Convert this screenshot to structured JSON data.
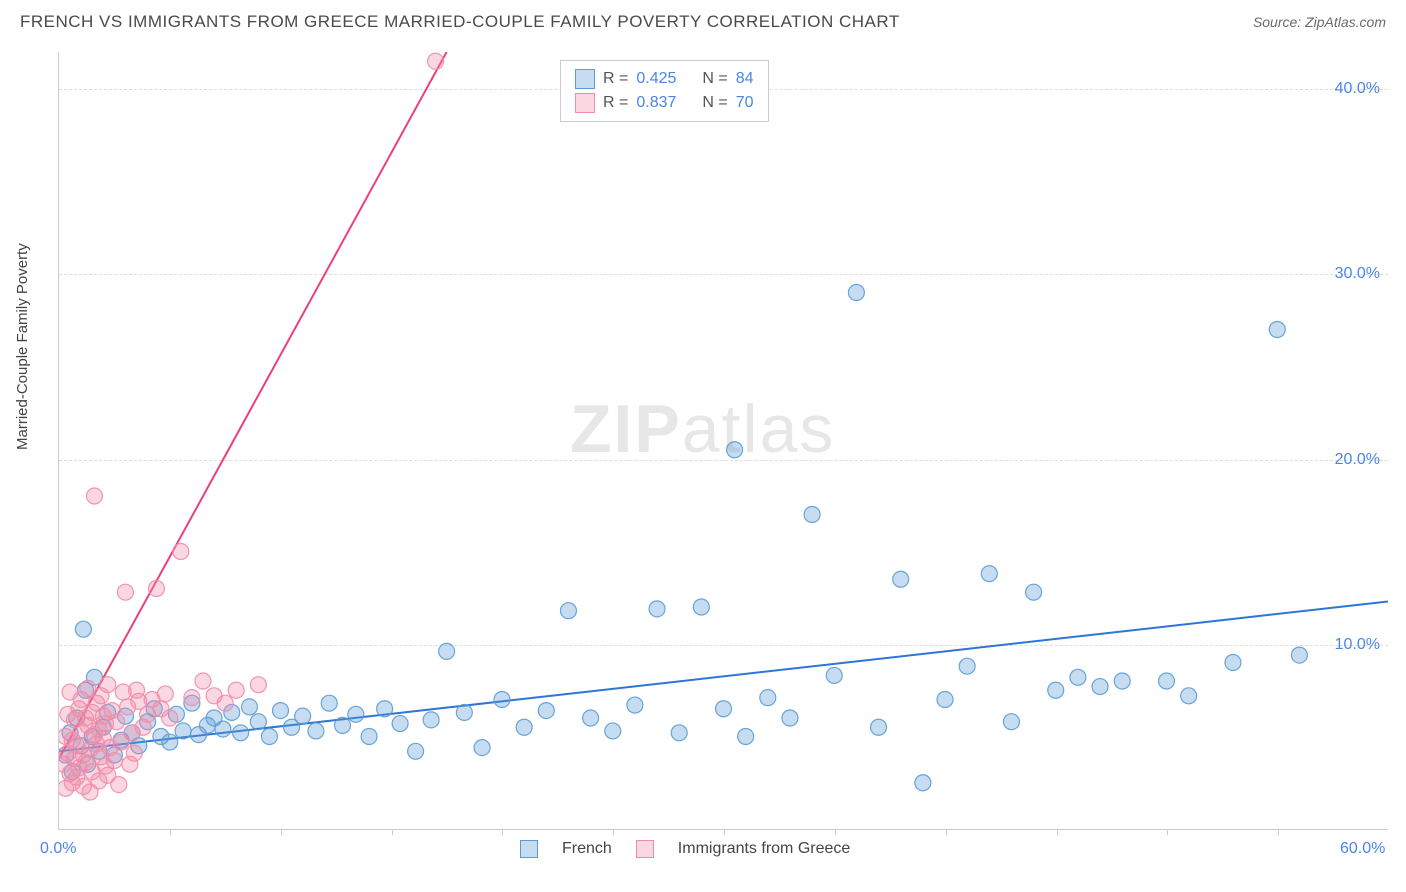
{
  "header": {
    "title": "FRENCH VS IMMIGRANTS FROM GREECE MARRIED-COUPLE FAMILY POVERTY CORRELATION CHART",
    "source": "Source: ZipAtlas.com"
  },
  "ylabel": "Married-Couple Family Poverty",
  "watermark_a": "ZIP",
  "watermark_b": "atlas",
  "chart": {
    "type": "scatter-with-regression",
    "xlim": [
      0,
      60
    ],
    "ylim": [
      0,
      42
    ],
    "x_origin_label": "0.0%",
    "x_max_label": "60.0%",
    "y_ticks": [
      {
        "v": 10,
        "label": "10.0%"
      },
      {
        "v": 20,
        "label": "20.0%"
      },
      {
        "v": 30,
        "label": "30.0%"
      },
      {
        "v": 40,
        "label": "40.0%"
      }
    ],
    "x_minor_ticks": [
      5,
      10,
      15,
      20,
      25,
      30,
      35,
      40,
      45,
      50,
      55
    ],
    "grid_color": "#dddddd",
    "background_color": "#ffffff",
    "axis_color": "#cccccc",
    "marker_radius": 8,
    "marker_fill_opacity": 0.35,
    "marker_stroke_opacity": 0.9,
    "line_width": 2,
    "series": [
      {
        "name": "French",
        "color": "#5b9bd5",
        "line_color": "#2e75d6",
        "R": "0.425",
        "N": "84",
        "regression": {
          "x1": 0,
          "y1": 4.2,
          "x2": 60,
          "y2": 12.3
        },
        "points": [
          [
            0.3,
            4.0
          ],
          [
            0.5,
            5.2
          ],
          [
            0.6,
            3.1
          ],
          [
            0.8,
            6.0
          ],
          [
            1.0,
            4.5
          ],
          [
            1.1,
            10.8
          ],
          [
            1.2,
            7.5
          ],
          [
            1.3,
            3.5
          ],
          [
            1.5,
            5.0
          ],
          [
            1.6,
            8.2
          ],
          [
            1.8,
            4.2
          ],
          [
            2.0,
            5.5
          ],
          [
            2.2,
            6.3
          ],
          [
            2.5,
            4.0
          ],
          [
            2.8,
            4.8
          ],
          [
            3.0,
            6.1
          ],
          [
            3.3,
            5.2
          ],
          [
            3.6,
            4.5
          ],
          [
            4.0,
            5.8
          ],
          [
            4.3,
            6.5
          ],
          [
            4.6,
            5.0
          ],
          [
            5.0,
            4.7
          ],
          [
            5.3,
            6.2
          ],
          [
            5.6,
            5.3
          ],
          [
            6.0,
            6.8
          ],
          [
            6.3,
            5.1
          ],
          [
            6.7,
            5.6
          ],
          [
            7.0,
            6.0
          ],
          [
            7.4,
            5.4
          ],
          [
            7.8,
            6.3
          ],
          [
            8.2,
            5.2
          ],
          [
            8.6,
            6.6
          ],
          [
            9.0,
            5.8
          ],
          [
            9.5,
            5.0
          ],
          [
            10.0,
            6.4
          ],
          [
            10.5,
            5.5
          ],
          [
            11.0,
            6.1
          ],
          [
            11.6,
            5.3
          ],
          [
            12.2,
            6.8
          ],
          [
            12.8,
            5.6
          ],
          [
            13.4,
            6.2
          ],
          [
            14.0,
            5.0
          ],
          [
            14.7,
            6.5
          ],
          [
            15.4,
            5.7
          ],
          [
            16.1,
            4.2
          ],
          [
            16.8,
            5.9
          ],
          [
            17.5,
            9.6
          ],
          [
            18.3,
            6.3
          ],
          [
            19.1,
            4.4
          ],
          [
            20.0,
            7.0
          ],
          [
            21.0,
            5.5
          ],
          [
            22.0,
            6.4
          ],
          [
            23.0,
            11.8
          ],
          [
            24.0,
            6.0
          ],
          [
            25.0,
            5.3
          ],
          [
            26.0,
            6.7
          ],
          [
            27.0,
            11.9
          ],
          [
            28.0,
            5.2
          ],
          [
            29.0,
            12.0
          ],
          [
            30.0,
            6.5
          ],
          [
            30.5,
            20.5
          ],
          [
            31.0,
            5.0
          ],
          [
            32.0,
            7.1
          ],
          [
            33.0,
            6.0
          ],
          [
            34.0,
            17.0
          ],
          [
            35.0,
            8.3
          ],
          [
            36.0,
            29.0
          ],
          [
            37.0,
            5.5
          ],
          [
            38.0,
            13.5
          ],
          [
            39.0,
            2.5
          ],
          [
            40.0,
            7.0
          ],
          [
            41.0,
            8.8
          ],
          [
            42.0,
            13.8
          ],
          [
            43.0,
            5.8
          ],
          [
            44.0,
            12.8
          ],
          [
            45.0,
            7.5
          ],
          [
            46.0,
            8.2
          ],
          [
            47.0,
            7.7
          ],
          [
            48.0,
            8.0
          ],
          [
            50.0,
            8.0
          ],
          [
            51.0,
            7.2
          ],
          [
            53.0,
            9.0
          ],
          [
            55.0,
            27.0
          ],
          [
            56.0,
            9.4
          ]
        ]
      },
      {
        "name": "Immigrants from Greece",
        "color": "#f08ca8",
        "line_color": "#ec407a",
        "R": "0.837",
        "N": "70",
        "regression": {
          "x1": 0,
          "y1": 3.8,
          "x2": 17.5,
          "y2": 42
        },
        "points": [
          [
            0.2,
            3.5
          ],
          [
            0.3,
            2.2
          ],
          [
            0.3,
            5.0
          ],
          [
            0.4,
            4.1
          ],
          [
            0.4,
            6.2
          ],
          [
            0.5,
            3.0
          ],
          [
            0.5,
            7.4
          ],
          [
            0.6,
            2.5
          ],
          [
            0.6,
            4.8
          ],
          [
            0.7,
            3.8
          ],
          [
            0.7,
            5.9
          ],
          [
            0.8,
            2.8
          ],
          [
            0.8,
            4.5
          ],
          [
            0.9,
            6.5
          ],
          [
            0.9,
            3.3
          ],
          [
            1.0,
            5.3
          ],
          [
            1.0,
            7.0
          ],
          [
            1.1,
            2.3
          ],
          [
            1.1,
            4.0
          ],
          [
            1.2,
            6.0
          ],
          [
            1.2,
            3.6
          ],
          [
            1.3,
            5.6
          ],
          [
            1.3,
            7.6
          ],
          [
            1.4,
            2.0
          ],
          [
            1.4,
            4.3
          ],
          [
            1.5,
            6.3
          ],
          [
            1.5,
            3.1
          ],
          [
            1.6,
            5.1
          ],
          [
            1.6,
            18.0
          ],
          [
            1.7,
            4.6
          ],
          [
            1.7,
            6.8
          ],
          [
            1.8,
            2.6
          ],
          [
            1.8,
            5.4
          ],
          [
            1.9,
            3.9
          ],
          [
            1.9,
            7.2
          ],
          [
            2.0,
            4.9
          ],
          [
            2.0,
            6.1
          ],
          [
            2.1,
            3.4
          ],
          [
            2.1,
            5.7
          ],
          [
            2.2,
            2.9
          ],
          [
            2.2,
            7.8
          ],
          [
            2.3,
            4.4
          ],
          [
            2.4,
            6.4
          ],
          [
            2.5,
            3.7
          ],
          [
            2.6,
            5.8
          ],
          [
            2.7,
            2.4
          ],
          [
            2.8,
            4.7
          ],
          [
            2.9,
            7.4
          ],
          [
            3.0,
            12.8
          ],
          [
            3.1,
            6.6
          ],
          [
            3.2,
            3.5
          ],
          [
            3.3,
            5.2
          ],
          [
            3.4,
            4.1
          ],
          [
            3.5,
            7.5
          ],
          [
            3.6,
            6.9
          ],
          [
            3.8,
            5.5
          ],
          [
            4.0,
            6.2
          ],
          [
            4.2,
            7.0
          ],
          [
            4.4,
            13.0
          ],
          [
            4.6,
            6.5
          ],
          [
            4.8,
            7.3
          ],
          [
            5.0,
            6.0
          ],
          [
            5.5,
            15.0
          ],
          [
            6.0,
            7.1
          ],
          [
            6.5,
            8.0
          ],
          [
            7.0,
            7.2
          ],
          [
            7.5,
            6.8
          ],
          [
            8.0,
            7.5
          ],
          [
            9.0,
            7.8
          ],
          [
            17.0,
            41.5
          ]
        ]
      }
    ]
  },
  "legend_top": {
    "R_label": "R =",
    "N_label": "N ="
  },
  "legend_bottom": {
    "items": [
      "French",
      "Immigrants from Greece"
    ]
  }
}
